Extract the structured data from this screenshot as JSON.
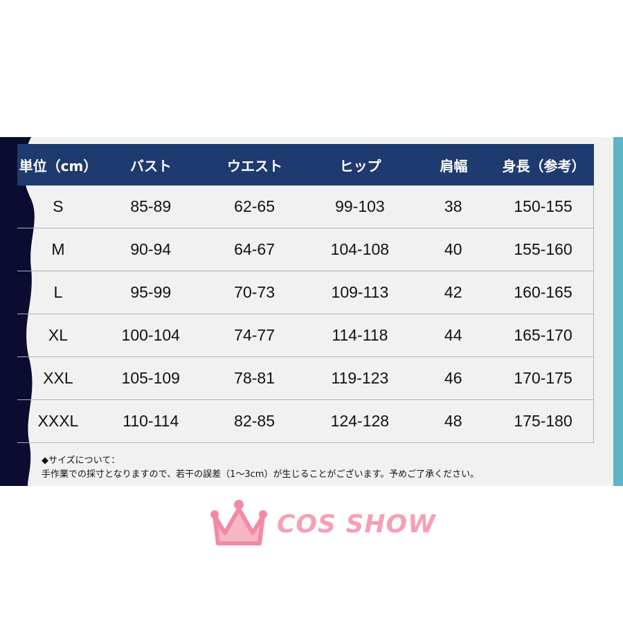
{
  "colors": {
    "header": "#1f3a6f",
    "navy": "#0c0c30",
    "teal": "#5fb3c6",
    "background": "#f1f1f1"
  },
  "headers": [
    "単位（cm）",
    "バスト",
    "ウエスト",
    "ヒップ",
    "肩幅",
    "身長（参考）"
  ],
  "rows": [
    [
      "S",
      "85-89",
      "62-65",
      "99-103",
      "38",
      "150-155"
    ],
    [
      "M",
      "90-94",
      "64-67",
      "104-108",
      "40",
      "155-160"
    ],
    [
      "L",
      "95-99",
      "70-73",
      "109-113",
      "42",
      "160-165"
    ],
    [
      "XL",
      "100-104",
      "74-77",
      "114-118",
      "44",
      "165-170"
    ],
    [
      "XXL",
      "105-109",
      "78-81",
      "119-123",
      "46",
      "170-175"
    ],
    [
      "XXXL",
      "110-114",
      "82-85",
      "124-128",
      "48",
      "175-180"
    ]
  ],
  "note": {
    "title": "◆サイズについて：",
    "body": "手作業での採寸となりますので、若干の誤差（1～3cm）が生じることがございます。予めご了承ください。"
  },
  "watermark": {
    "text": "COS SHOW",
    "icon": "crown-icon"
  }
}
